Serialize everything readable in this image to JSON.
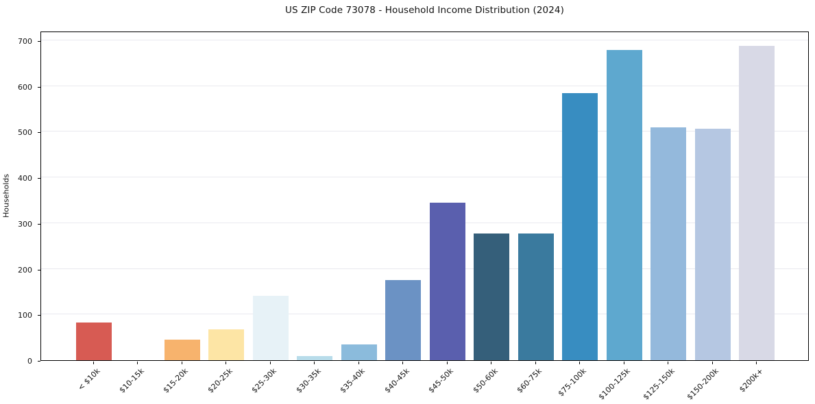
{
  "chart_data": {
    "type": "bar",
    "title": "US ZIP Code 73078 - Household Income Distribution (2024)",
    "xlabel": "",
    "ylabel": "Households",
    "categories": [
      "< $10k",
      "$10-15k",
      "$15-20k",
      "$20-25k",
      "$25-30k",
      "$30-35k",
      "$35-40k",
      "$40-45k",
      "$45-50k",
      "$50-60k",
      "$60-75k",
      "$75-100k",
      "$100-125k",
      "$125-150k",
      "$150-200k",
      "$200k+"
    ],
    "values": [
      83,
      0,
      45,
      67,
      141,
      9,
      35,
      176,
      345,
      278,
      278,
      585,
      679,
      509,
      507,
      688
    ],
    "bar_colors": [
      "#d75b53",
      "#f5925f",
      "#f7b36d",
      "#fde5a5",
      "#e7f2f7",
      "#b8dcea",
      "#8bbbdc",
      "#6b92c4",
      "#5a5fae",
      "#355f7a",
      "#3a7a9e",
      "#388dc1",
      "#5ea8cf",
      "#94b9dc",
      "#b5c7e2",
      "#d8d9e6"
    ],
    "yticks": [
      0,
      100,
      200,
      300,
      400,
      500,
      600,
      700
    ],
    "ylim": [
      0,
      721
    ],
    "grid": true,
    "gridline_color": "#e9e9ef",
    "axis_color": "#000000",
    "background_color": "#ffffff",
    "x_tick_label_rotation_deg": 45,
    "legend_position": "none"
  }
}
